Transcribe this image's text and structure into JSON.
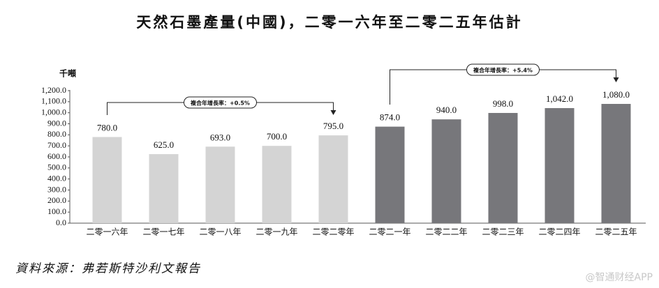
{
  "chart_data": {
    "type": "bar",
    "title": "天然石墨產量(中國)，二零一六年至二零二五年估計",
    "y_axis_label": "千噸",
    "categories": [
      "二零一六年",
      "二零一七年",
      "二零一八年",
      "二零一九年",
      "二零二零年",
      "二零二一年",
      "二零二二年",
      "二零二三年",
      "二零二四年",
      "二零二五年"
    ],
    "values": [
      780,
      625,
      693,
      700,
      795,
      874,
      940,
      998,
      1042,
      1080
    ],
    "value_labels": [
      "780.0",
      "625.0",
      "693.0",
      "700.0",
      "795.0",
      "874.0",
      "940.0",
      "998.0",
      "1,042.0",
      "1,080.0"
    ],
    "colors": [
      "#d4d4d4",
      "#d4d4d4",
      "#d4d4d4",
      "#d4d4d4",
      "#d4d4d4",
      "#77777b",
      "#77777b",
      "#77777b",
      "#77777b",
      "#77777b"
    ],
    "ylim": [
      0,
      1200
    ],
    "yticks": [
      {
        "value": 0,
        "label": "0.0"
      },
      {
        "value": 100,
        "label": "100.0"
      },
      {
        "value": 200,
        "label": "200.0"
      },
      {
        "value": 300,
        "label": "300.0"
      },
      {
        "value": 400,
        "label": "400.0"
      },
      {
        "value": 500,
        "label": "500.0"
      },
      {
        "value": 600,
        "label": "600.0"
      },
      {
        "value": 700,
        "label": "700.0"
      },
      {
        "value": 800,
        "label": "800.0"
      },
      {
        "value": 900,
        "label": "900.0"
      },
      {
        "value": 1000,
        "label": "1,000.0"
      },
      {
        "value": 1100,
        "label": "1,100.0"
      },
      {
        "value": 1200,
        "label": "1,200.0"
      }
    ],
    "annotations": [
      "複合年增長率：+0.5%",
      "複合年增長率：+5.4%"
    ],
    "source": "資料來源：弗若斯特沙利文報告",
    "watermark": "@智通财经APP"
  }
}
